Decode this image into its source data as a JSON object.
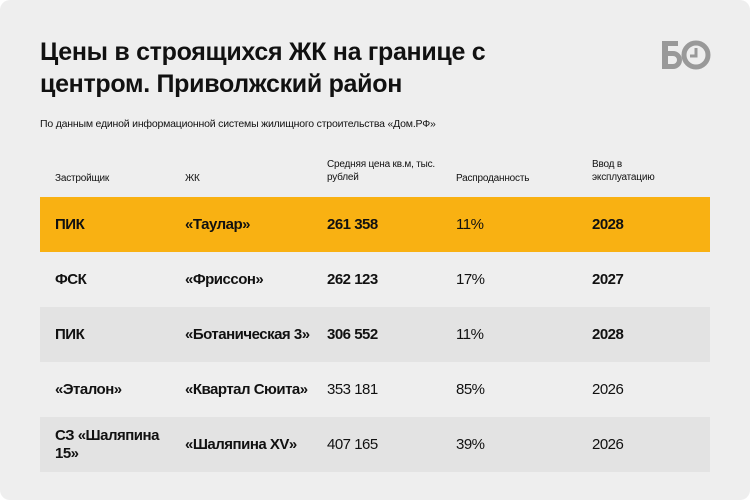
{
  "title": "Цены в строящихся ЖК на границе с центром. Приволжский район",
  "subtitle": "По данным единой информационной системы жилищного строительства «Дом.РФ»",
  "logo": "БО",
  "colors": {
    "highlight": "#f9b112",
    "band": "#e3e3e3",
    "bg": "#eeeeee",
    "logo": "#999999"
  },
  "headers": [
    "Застройщик",
    "ЖК",
    "Средняя цена кв.м, тыс. рублей",
    "Распроданность",
    "Ввод в эксплуатацию"
  ],
  "rows": [
    {
      "developer": "ПИК",
      "complex": "«Таулар»",
      "price": "261 358",
      "sold": "11%",
      "year": "2028"
    },
    {
      "developer": "ФСК",
      "complex": "«Фриссон»",
      "price": "262 123",
      "sold": "17%",
      "year": "2027"
    },
    {
      "developer": "ПИК",
      "complex": "«Ботаническая 3»",
      "price": "306 552",
      "sold": "11%",
      "year": "2028"
    },
    {
      "developer": "«Эталон»",
      "complex": "«Квартал Сюита»",
      "price": "353 181",
      "sold": "85%",
      "year": "2026"
    },
    {
      "developer": "СЗ «Шаляпина 15»",
      "complex": "«Шаляпина XV»",
      "price": "407 165",
      "sold": "39%",
      "year": "2026"
    }
  ]
}
